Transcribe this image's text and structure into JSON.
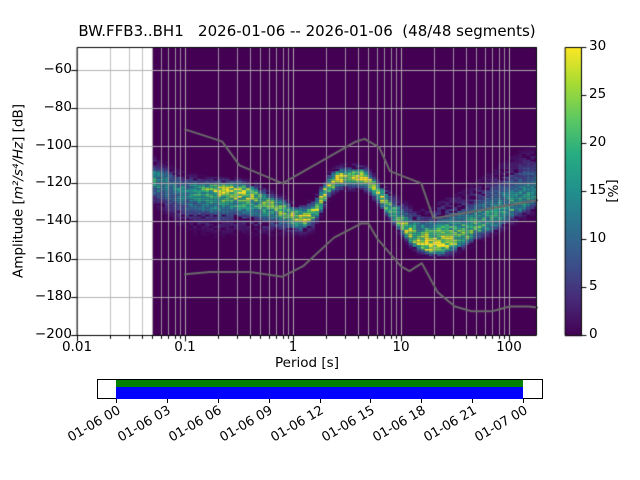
{
  "chart_data": {
    "type": "heatmap",
    "title": "BW.FFB3..BH1   2026-01-06 -- 2026-01-06  (48/48 segments)",
    "xlabel": "Period [s]",
    "ylabel": "Amplitude [m²/s⁴/Hz] [dB]",
    "x_scale": "log",
    "xlim": [
      0.01,
      181.7
    ],
    "ylim_db": [
      -200,
      -48
    ],
    "grid": true,
    "colormap": "viridis",
    "percent_range": [
      0,
      30
    ],
    "data_period_start_s": 0.05,
    "period_step_octaves": 0.125,
    "db_bin_db": 1,
    "mode_curve_fields": [
      "period_s",
      "mode_db",
      "peak_percent",
      "sigma_up_db",
      "sigma_down_db"
    ],
    "mode_curve": [
      [
        0.05,
        -118,
        17,
        5.5,
        6
      ],
      [
        0.065,
        -120,
        15,
        5,
        7
      ],
      [
        0.08,
        -122,
        14,
        4.5,
        8
      ],
      [
        0.1,
        -123.5,
        14,
        4,
        9
      ],
      [
        0.14,
        -123,
        18,
        3,
        9.5
      ],
      [
        0.2,
        -122.5,
        24,
        2.5,
        10
      ],
      [
        0.32,
        -123,
        26,
        2.5,
        9
      ],
      [
        0.45,
        -126,
        22,
        3,
        8.5
      ],
      [
        0.6,
        -130,
        21,
        3,
        7
      ],
      [
        0.8,
        -133.5,
        23,
        3,
        5.5
      ],
      [
        1.0,
        -136.5,
        26,
        3,
        4.5
      ],
      [
        1.25,
        -138,
        28,
        3,
        4
      ],
      [
        1.55,
        -135,
        26,
        3,
        4
      ],
      [
        1.85,
        -128.5,
        26,
        3.5,
        3.5
      ],
      [
        2.2,
        -120.5,
        28,
        3,
        3
      ],
      [
        2.6,
        -117.5,
        29,
        3,
        3
      ],
      [
        3.5,
        -116.5,
        30,
        3,
        3
      ],
      [
        4.6,
        -117,
        30,
        3,
        3
      ],
      [
        5.3,
        -120.5,
        28,
        3,
        3
      ],
      [
        6.2,
        -125.5,
        26,
        3.5,
        3
      ],
      [
        7.2,
        -130.5,
        24,
        4,
        3
      ],
      [
        8.5,
        -136,
        23,
        5,
        3
      ],
      [
        10.5,
        -143,
        24,
        6,
        2.8
      ],
      [
        12.5,
        -148.5,
        26,
        7,
        2.6
      ],
      [
        15,
        -151.5,
        28,
        7.5,
        2.5
      ],
      [
        18,
        -153.5,
        30,
        8.5,
        2.5
      ],
      [
        24,
        -153.5,
        27,
        10.5,
        2.6
      ],
      [
        30,
        -151.5,
        23,
        11,
        2.8
      ],
      [
        40,
        -148,
        20,
        10.5,
        3
      ],
      [
        50,
        -144.5,
        19,
        11,
        3.2
      ],
      [
        65,
        -141,
        18,
        11.5,
        3.4
      ],
      [
        80,
        -138,
        17,
        12,
        3.6
      ],
      [
        100,
        -134.5,
        17,
        12,
        3.8
      ],
      [
        130,
        -130.5,
        16,
        12,
        4
      ],
      [
        182,
        -126,
        16,
        11,
        4
      ]
    ],
    "noise_models": {
      "nhnm": [
        [
          0.1,
          -91.5
        ],
        [
          0.22,
          -97.8
        ],
        [
          0.32,
          -110.5
        ],
        [
          0.8,
          -120
        ],
        [
          3.8,
          -98
        ],
        [
          4.6,
          -96.5
        ],
        [
          6.3,
          -101
        ],
        [
          7.9,
          -113.5
        ],
        [
          15.4,
          -120
        ],
        [
          20,
          -138.5
        ],
        [
          181.7,
          -128.9
        ]
      ],
      "nlnm": [
        [
          0.1,
          -168
        ],
        [
          0.17,
          -166.7
        ],
        [
          0.4,
          -166.7
        ],
        [
          0.8,
          -169.2
        ],
        [
          1.24,
          -163.7
        ],
        [
          2.4,
          -148.6
        ],
        [
          4.3,
          -141.1
        ],
        [
          5,
          -141.1
        ],
        [
          6,
          -149
        ],
        [
          10,
          -163.8
        ],
        [
          12,
          -166.3
        ],
        [
          15.6,
          -162.1
        ],
        [
          21.9,
          -177.5
        ],
        [
          31.6,
          -185
        ],
        [
          45,
          -187.5
        ],
        [
          70,
          -187.5
        ],
        [
          101,
          -185
        ],
        [
          154,
          -185
        ],
        [
          181.7,
          -185.5
        ]
      ]
    }
  },
  "axes": {
    "ylabel_pre": "Amplitude [",
    "ylabel_math": "m²/s⁴/Hz",
    "ylabel_post": "] [dB]",
    "x_ticks": [
      {
        "v": 0.01,
        "label": "0.01"
      },
      {
        "v": 0.1,
        "label": "0.1"
      },
      {
        "v": 1,
        "label": "1"
      },
      {
        "v": 10,
        "label": "10"
      },
      {
        "v": 100,
        "label": "100"
      }
    ],
    "y_ticks": [
      {
        "v": -60,
        "label": "−60"
      },
      {
        "v": -80,
        "label": "−80"
      },
      {
        "v": -100,
        "label": "−100"
      },
      {
        "v": -120,
        "label": "−120"
      },
      {
        "v": -140,
        "label": "−140"
      },
      {
        "v": -160,
        "label": "−160"
      },
      {
        "v": -180,
        "label": "−180"
      },
      {
        "v": -200,
        "label": "−200"
      }
    ]
  },
  "colorbar": {
    "label": "[%]",
    "ticks": [
      0,
      5,
      10,
      15,
      20,
      25,
      30
    ],
    "min": 0,
    "max": 30
  },
  "timeline": {
    "labels": [
      "01-06 00",
      "01-06 03",
      "01-06 06",
      "01-06 09",
      "01-06 12",
      "01-06 15",
      "01-06 18",
      "01-06 21",
      "01-07 00"
    ],
    "coverage_top_color": "#008000",
    "coverage_bottom_color": "#0000ff"
  },
  "colors": {
    "figure_background": "#ffffff",
    "histogram_zero": "#440154",
    "grid": "#b0b0b0",
    "noise_model": "#6a6a6a",
    "frame": "#000000"
  }
}
